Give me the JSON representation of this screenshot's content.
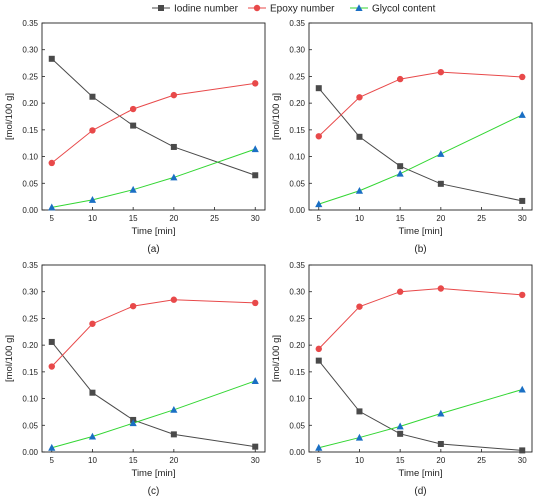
{
  "legend": [
    {
      "name": "Iodine number",
      "color": "#4a4a4a",
      "marker": "square"
    },
    {
      "name": "Epoxy  number",
      "color": "#e8494a",
      "marker": "circle"
    },
    {
      "name": "Glycol content",
      "color": "#1a6fc4",
      "marker": "triangle",
      "line_color": "#33d633"
    }
  ],
  "chart_data": [
    {
      "type": "line",
      "panel": "(a)",
      "xlabel": "Time [min]",
      "ylabel": "[mol/100 g]",
      "x": [
        5,
        10,
        15,
        20,
        30
      ],
      "xticks": [
        5,
        10,
        15,
        20,
        25,
        30
      ],
      "ylim": [
        0,
        0.35
      ],
      "yticks": [
        "0.00",
        "0.05",
        "0.10",
        "0.15",
        "0.20",
        "0.25",
        "0.30",
        "0.35"
      ],
      "series": [
        {
          "name": "Iodine number",
          "values": [
            0.283,
            0.212,
            0.158,
            0.118,
            0.065
          ]
        },
        {
          "name": "Epoxy  number",
          "values": [
            0.088,
            0.149,
            0.189,
            0.215,
            0.237
          ]
        },
        {
          "name": "Glycol content",
          "values": [
            0.005,
            0.019,
            0.038,
            0.061,
            0.114
          ]
        }
      ]
    },
    {
      "type": "line",
      "panel": "(b)",
      "xlabel": "Time [min]",
      "ylabel": "[mol/100 g]",
      "x": [
        5,
        10,
        15,
        20,
        30
      ],
      "xticks": [
        5,
        10,
        15,
        20,
        25,
        30
      ],
      "ylim": [
        0,
        0.35
      ],
      "yticks": [
        "0.00",
        "0.05",
        "0.10",
        "0.15",
        "0.20",
        "0.25",
        "0.30",
        "0.35"
      ],
      "series": [
        {
          "name": "Iodine number",
          "values": [
            0.228,
            0.137,
            0.082,
            0.049,
            0.017
          ]
        },
        {
          "name": "Epoxy  number",
          "values": [
            0.138,
            0.211,
            0.245,
            0.258,
            0.249
          ]
        },
        {
          "name": "Glycol content",
          "values": [
            0.011,
            0.036,
            0.068,
            0.105,
            0.178
          ]
        }
      ]
    },
    {
      "type": "line",
      "panel": "(c)",
      "xlabel": "Time [min]",
      "ylabel": "[mol/100 g]",
      "x": [
        5,
        10,
        15,
        20,
        30
      ],
      "xticks": [
        5,
        10,
        15,
        20,
        30
      ],
      "ylim": [
        0,
        0.35
      ],
      "yticks": [
        "0.00",
        "0.05",
        "0.10",
        "0.15",
        "0.20",
        "0.25",
        "0.30",
        "0.35"
      ],
      "series": [
        {
          "name": "Iodine number",
          "values": [
            0.206,
            0.111,
            0.06,
            0.033,
            0.01
          ]
        },
        {
          "name": "Epoxy  number",
          "values": [
            0.16,
            0.24,
            0.273,
            0.285,
            0.279
          ]
        },
        {
          "name": "Glycol content",
          "values": [
            0.008,
            0.029,
            0.054,
            0.079,
            0.133
          ]
        }
      ]
    },
    {
      "type": "line",
      "panel": "(d)",
      "xlabel": "Time [min]",
      "ylabel": "[mol/100 g]",
      "x": [
        5,
        10,
        15,
        20,
        30
      ],
      "xticks": [
        5,
        10,
        15,
        20,
        25,
        30
      ],
      "ylim": [
        0,
        0.35
      ],
      "yticks": [
        "0.00",
        "0.05",
        "0.10",
        "0.15",
        "0.20",
        "0.25",
        "0.30",
        "0.35"
      ],
      "series": [
        {
          "name": "Iodine number",
          "values": [
            0.171,
            0.076,
            0.034,
            0.015,
            0.003
          ]
        },
        {
          "name": "Epoxy  number",
          "values": [
            0.193,
            0.272,
            0.3,
            0.306,
            0.294
          ]
        },
        {
          "name": "Glycol content",
          "values": [
            0.008,
            0.027,
            0.048,
            0.072,
            0.117
          ]
        }
      ]
    }
  ]
}
